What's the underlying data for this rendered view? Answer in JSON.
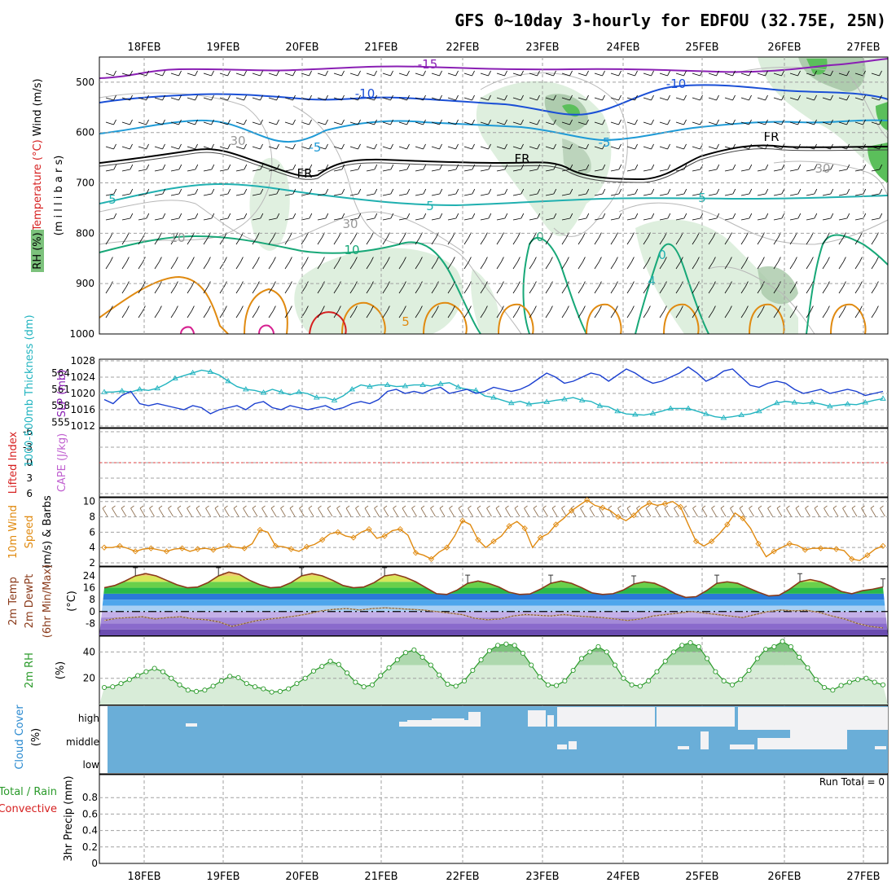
{
  "title": "GFS 0~10day 3-hourly for EDFOU (32.75E, 25N)",
  "chart_data": [
    {
      "id": "upper_air",
      "type": "contour",
      "dates": [
        "18FEB",
        "19FEB",
        "20FEB",
        "21FEB",
        "22FEB",
        "23FEB",
        "24FEB",
        "25FEB",
        "26FEB",
        "27FEB"
      ],
      "y_ticks": [
        "500",
        "600",
        "700",
        "800",
        "900",
        "1000"
      ],
      "y_label_parts": [
        {
          "text": "Wind (m/s)",
          "color": "#000000"
        },
        {
          "text": "Temperature (°C)",
          "color": "#d62020"
        },
        {
          "text": "(m i l l i b a r s)",
          "color": "#000000"
        },
        {
          "text": "RH (%)",
          "color": "#000000"
        }
      ],
      "contour_labels": [
        {
          "text": "-15",
          "color": "#8a1fb4"
        },
        {
          "text": "-10",
          "color": "#1a4fd6"
        },
        {
          "text": "-10",
          "color": "#1a4fd6"
        },
        {
          "text": "-5",
          "color": "#1e9ad6"
        },
        {
          "text": "-5",
          "color": "#1e9ad6"
        },
        {
          "text": "FR",
          "color": "#000000"
        },
        {
          "text": "FR",
          "color": "#000000"
        },
        {
          "text": "FR",
          "color": "#000000"
        },
        {
          "text": "5",
          "color": "#20b0b0"
        },
        {
          "text": "5",
          "color": "#20b0b0"
        },
        {
          "text": "5",
          "color": "#20b0b0"
        },
        {
          "text": "10",
          "color": "#18a878"
        },
        {
          "text": "0",
          "color": "#18a878"
        },
        {
          "text": "0",
          "color": "#20b0b0"
        },
        {
          "text": "4",
          "color": "#20b0b0"
        },
        {
          "text": "5",
          "color": "#e08a10"
        },
        {
          "text": "10",
          "color": "#999999"
        },
        {
          "text": "30",
          "color": "#999999"
        },
        {
          "text": "30",
          "color": "#999999"
        },
        {
          "text": "30",
          "color": "#999999"
        }
      ]
    },
    {
      "id": "thickness_slp",
      "type": "line",
      "y_label_left": "1000-500mb Thickness (dm)",
      "y_label_right": "SLP (mb)",
      "left_ticks": [
        "564",
        "561",
        "558",
        "555"
      ],
      "right_ticks": [
        "1028",
        "1024",
        "1020",
        "1016",
        "1012"
      ],
      "series": [
        {
          "name": "SLP",
          "color": "#1a3fd0",
          "values": [
            1018.5,
            1017.5,
            1019.5,
            1020.5,
            1017.5,
            1017,
            1017.5,
            1017,
            1016.5,
            1016,
            1017,
            1016.5,
            1015,
            1016,
            1016.5,
            1017,
            1016,
            1017.5,
            1018,
            1016.5,
            1016,
            1017,
            1016.5,
            1016,
            1016.5,
            1017,
            1016,
            1016.5,
            1017.5,
            1018,
            1017.5,
            1018.5,
            1020.5,
            1021,
            1020,
            1020.5,
            1020,
            1021,
            1021.5,
            1020,
            1020.5,
            1021,
            1020,
            1020.5,
            1021.5,
            1021,
            1020.5,
            1021,
            1022,
            1023.5,
            1025,
            1024,
            1022.5,
            1023,
            1024,
            1025,
            1024.5,
            1023,
            1024.5,
            1026,
            1025,
            1023.5,
            1022.5,
            1023,
            1024,
            1025,
            1026.5,
            1025,
            1023,
            1024,
            1025.5,
            1026,
            1024,
            1022,
            1021.5,
            1022.5,
            1023,
            1022.5,
            1021,
            1020,
            1020.5,
            1021,
            1020,
            1020.5,
            1021,
            1020.5,
            1019.5,
            1020,
            1020.5
          ]
        },
        {
          "name": "Thickness",
          "color": "#22b4c0",
          "values": [
            560.5,
            560.5,
            560.7,
            560.5,
            561,
            560.8,
            561.2,
            562,
            563,
            563.5,
            564,
            564.5,
            564.2,
            563.6,
            562.5,
            561.5,
            561,
            560.8,
            560.4,
            561,
            560.5,
            560,
            560.5,
            560.2,
            559.5,
            559.5,
            559,
            559.8,
            561,
            561.8,
            561.5,
            561.8,
            561.8,
            561.5,
            561.6,
            561.8,
            561.8,
            561.6,
            562,
            562.2,
            561.4,
            561,
            560.8,
            559.8,
            559.5,
            559,
            558.5,
            558.8,
            558.3,
            558.5,
            558.7,
            559,
            559.2,
            559.5,
            559,
            558.8,
            558,
            557.8,
            557,
            556.5,
            556.4,
            556.3,
            556.6,
            557,
            557.5,
            557.5,
            557.5,
            557,
            556.5,
            556,
            555.8,
            556,
            556.3,
            556.5,
            557,
            557.8,
            558.5,
            558.8,
            558.6,
            558.4,
            558.6,
            558.3,
            557.9,
            558.1,
            558.3,
            558.2,
            558.6,
            559,
            559.3
          ]
        }
      ]
    },
    {
      "id": "li_cape",
      "type": "line",
      "y_label_left": "Lifted Index",
      "y_label_right": "CAPE (J/kg)",
      "ticks": [
        "-6",
        "-3",
        "0",
        "3",
        "6"
      ]
    },
    {
      "id": "wind10m",
      "type": "line",
      "y_label": "10m Wind Speed (m/s) & Barbs",
      "ticks": [
        "10",
        "8",
        "6",
        "4",
        "2"
      ],
      "ylim": [
        2,
        10.5
      ],
      "series": [
        {
          "name": "Speed",
          "color": "#e08a10",
          "values": [
            4,
            4,
            4.2,
            3.9,
            3.5,
            3.8,
            3.9,
            3.7,
            3.5,
            3.8,
            3.9,
            3.5,
            3.8,
            3.9,
            3.7,
            4,
            4.2,
            4,
            3.9,
            4.5,
            6.3,
            6,
            4.2,
            4.1,
            3.8,
            3.5,
            4.1,
            4.4,
            5,
            5.8,
            6,
            5.5,
            5.3,
            6,
            6.4,
            5.2,
            5.5,
            6.2,
            6.4,
            5.6,
            3.3,
            3,
            2.5,
            3.4,
            4,
            5.5,
            7.5,
            7,
            5,
            4,
            4.8,
            5.5,
            6.8,
            7.4,
            6.5,
            4,
            5.3,
            5.8,
            7,
            7.8,
            8.8,
            9.5,
            10.2,
            9.5,
            9.2,
            8.8,
            8,
            7.5,
            8.2,
            9.2,
            9.8,
            9.5,
            9.7,
            10,
            9.3,
            7,
            4.8,
            4.2,
            4.8,
            5.8,
            7,
            8.5,
            7.8,
            6.5,
            4.5,
            2.8,
            3.5,
            4,
            4.5,
            4.3,
            3.7,
            3.9,
            3.9,
            3.9,
            3.8,
            3.6,
            2.5,
            2.3,
            3,
            3.8,
            4.2
          ]
        }
      ]
    },
    {
      "id": "temp2m",
      "type": "area",
      "y_label": "2m Temp 2m DewPt (6hr Min/Max) (°C)",
      "ticks": [
        "24",
        "16",
        "8",
        "0",
        "-8"
      ],
      "ylim": [
        -16,
        30
      ],
      "series": [
        {
          "name": "2m Temp",
          "color": "#8a3a1a",
          "values": [
            16,
            17.5,
            20.5,
            24,
            25.5,
            24,
            21,
            18,
            16,
            16.5,
            19.5,
            24,
            26.5,
            25,
            21,
            18,
            16,
            16.5,
            19.5,
            24,
            25.5,
            24,
            21,
            17.5,
            16,
            16.5,
            19.5,
            24,
            25,
            23,
            20,
            16,
            12,
            11.5,
            14.5,
            19,
            20.5,
            19,
            16.5,
            13,
            11.5,
            11.8,
            15,
            19,
            20.5,
            19,
            16,
            12.5,
            11.5,
            12,
            14.5,
            18.5,
            20,
            19,
            16,
            12,
            9.5,
            10,
            14,
            19,
            20,
            19,
            16,
            13,
            10.5,
            11,
            15,
            20,
            21.5,
            20,
            17,
            13.5,
            12,
            14,
            15,
            16.5
          ]
        },
        {
          "name": "2m DewPt",
          "color": "#8a5a30",
          "values": [
            -6,
            -4.5,
            -4,
            -3.5,
            -5,
            -4,
            -3.5,
            -5,
            -5.5,
            -7,
            -10,
            -8,
            -6,
            -5,
            -4,
            -3,
            -1.5,
            0.5,
            1.5,
            2,
            1,
            2,
            2.5,
            2,
            1.5,
            1,
            0,
            -1,
            -2,
            -4.5,
            -5.5,
            -5,
            -3,
            -2,
            -2.5,
            -3,
            -2,
            -3,
            -3.5,
            -4,
            -5,
            -6,
            -5,
            -3,
            -2,
            -1,
            0,
            -1,
            -2,
            -3,
            -4,
            -2,
            0,
            1,
            0.5,
            0.8,
            -0.5,
            -3,
            -5,
            -8,
            -10,
            -11
          ]
        }
      ]
    },
    {
      "id": "rh2m",
      "type": "area",
      "y_label": "2m RH (%)",
      "ticks": [
        "40",
        "20"
      ],
      "ylim": [
        0,
        52
      ],
      "series": [
        {
          "name": "2m RH",
          "color": "#2a9a2a",
          "values": [
            13,
            13.5,
            16,
            19,
            22,
            25,
            27.5,
            25,
            20,
            15,
            11,
            10,
            11,
            14,
            18,
            21.5,
            20.5,
            16,
            13.5,
            12,
            9.5,
            10,
            12,
            16,
            20,
            25.5,
            29,
            33,
            30.5,
            24,
            17,
            13.5,
            15,
            22,
            28,
            34,
            39.5,
            41.5,
            36,
            30,
            22.5,
            15.5,
            14,
            18,
            26,
            34,
            41,
            45,
            46,
            45,
            39,
            30,
            21,
            15,
            14.5,
            18,
            26,
            35,
            40,
            44,
            40,
            30,
            20,
            15,
            14,
            18,
            25,
            33,
            40,
            45,
            47,
            44,
            35,
            25,
            18,
            15,
            19,
            26,
            35,
            42,
            44,
            48,
            44,
            36,
            28,
            19,
            13,
            11,
            14.5,
            17,
            19,
            20,
            17,
            15
          ]
        }
      ]
    },
    {
      "id": "cloud",
      "type": "heatmap",
      "y_label": "Cloud Cover (%)",
      "levels": [
        "high",
        "middle",
        "low"
      ]
    },
    {
      "id": "precip",
      "type": "bar",
      "y_label": "3hr Precip (mm)",
      "legend_lines": [
        "Total / Rain",
        "Convective"
      ],
      "ticks": [
        "0.8",
        "0.6",
        "0.4",
        "0.2",
        "0"
      ],
      "ylim": [
        0,
        1
      ],
      "annotation": "Run Total = 0"
    }
  ]
}
